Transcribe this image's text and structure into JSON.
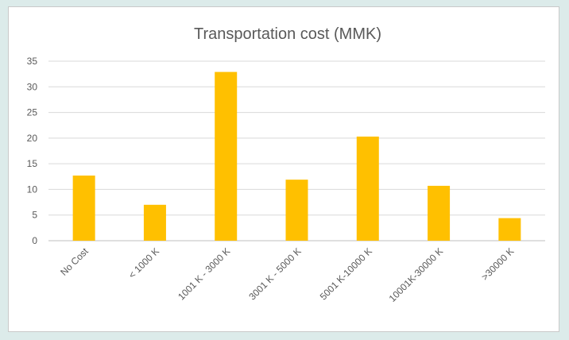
{
  "chart_data": {
    "type": "bar",
    "title": "Transportation cost (MMK)",
    "categories": [
      "No Cost",
      "< 1000 K",
      "1001 K - 3000 K",
      "3001 K - 5000 K",
      "5001 K-10000 K",
      "10001K-30000 K",
      ">30000 K"
    ],
    "values": [
      12.7,
      7.0,
      32.9,
      11.9,
      20.3,
      10.7,
      4.4
    ],
    "ylim": [
      0,
      35
    ],
    "yticks": [
      0,
      5,
      10,
      15,
      20,
      25,
      30,
      35
    ],
    "xlabel": "",
    "ylabel": "",
    "grid": true,
    "legend": "none",
    "bar_color": "#ffc000"
  }
}
